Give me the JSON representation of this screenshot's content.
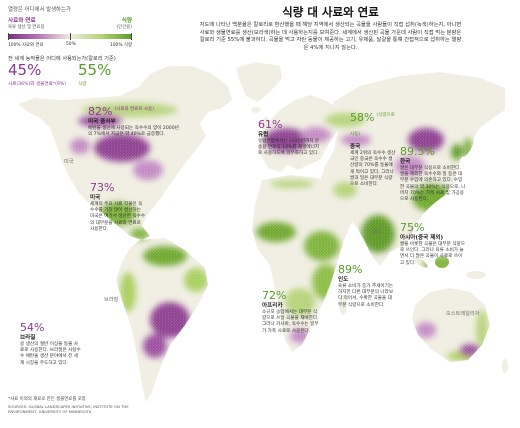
{
  "header": {
    "legend_heading": "열량은 어디에서 발생하는가",
    "title": "식량 대 사료와 연료",
    "intro": "지도에 나타난 백분율은 칼로리로 환산했을 때 해당 지역에서 생산되는 곡물을 사람들이 직접 섭취(녹색)하는지, 아니면 사료와 생물연료를 생산(보라색)하는 데 사용하는지를 보여준다. 세계에서 생산된 곡물 가운데 사람이 직접 먹는 분량은 칼로리 기준 55%에 불과하다. 곡물을 먹고 자란 동물이 제공하는 고기, 유제품, 달걀을 통해 간접적으로 섭취하는 열량은 4%에 지나지 않는다."
  },
  "legend": {
    "feed_label": "사료와 연료",
    "feed_sub": "육류 생산 및 연료용",
    "food_label": "식량",
    "food_sub": "(인간용)",
    "tick_feed": "100% 사료와 연료",
    "tick_mid": "50%",
    "tick_food": "100% 식량",
    "colors": {
      "feed": "#7a2f80",
      "feed_light": "#b877b8",
      "mid": "#efebe0",
      "food_light": "#b6d37a",
      "food": "#5e9a25"
    }
  },
  "global": {
    "question": "전 세계 농작물은 어디에 사용되는가(칼로리 기준)",
    "feed_pct": "45%",
    "feed_label": "사료(36%)와 생물연료*(9%)",
    "food_pct": "55%",
    "food_label": "식량"
  },
  "callouts": [
    {
      "pct": "82%",
      "note": "(사료와 연료로 사용)",
      "region": "미국 중서부",
      "text": "에탄올 생산에 사용되는 옥수수의 양이 2000년의 7%에서 지금은 약 40%로 급증했다."
    },
    {
      "pct": "73%",
      "note": "",
      "region": "미국",
      "text": "세계의 주요 사료 작물인 옥수수를 가장 많이 생산하는 미국은 여기서 생산한 옥수수의 대부분을 사료와 연료로 사용한다."
    },
    {
      "pct": "61%",
      "note": "",
      "region": "유럽",
      "text": "유럽연합에서는 2020년까지 운송용 연료의 10%를 재생에너지로 사용하도록 의무화하고 있다."
    },
    {
      "pct": "58%",
      "note": "(식량으로 사용)",
      "region": "중국",
      "text": "세계 2위의 옥수수 생산국인 중국은 옥수수 생산량의 70%를 동물에게 먹이고 있다. 그러나 쌀과 밀은 대부분 식량으로 소비한다."
    },
    {
      "pct": "89.5%",
      "note": "",
      "region": "한국",
      "text": "쌀은 대부분 식용으로 소비한다. 쌀을 제외한 옥수수와 밀 등은 대부분 수입에 의존하고 있다. 수입한 곡물의 약 30%는 식용으로, 나머지 70%는 가축 사료 및 가공용으로 사용된다."
    },
    {
      "pct": "75%",
      "note": "",
      "region": "아시아(중국 제외)",
      "text": "쌀을 비롯한 곡물은 대부분 식량으로 쓰인다. 그러나 육류 소비가 늘면서 더 많은 곡물이 사료로 쓰이고 있다."
    },
    {
      "pct": "89%",
      "note": "",
      "region": "인도",
      "text": "육류 소비가 증가 추세이기는 하지만 다른 대부분의 나라보다 적어서, 수확한 곡물을 대부분 식량으로 소비한다."
    },
    {
      "pct": "72%",
      "note": "",
      "region": "아프리카",
      "text": "소규모 농업에서는 대부분 식량으로 쓰일 곡물을 재배한다. 그러나 카사바, 옥수수는 일부가 가축 사료로 사용된다."
    },
    {
      "pct": "54%",
      "note": "",
      "region": "브라질",
      "text": "콩 생산의 절반 이상을 동물 사료로 사용한다. 브라질은 사탕수수 에탄올 생산 분야에서 전 세계 시장을 주도하고 있다."
    }
  ],
  "map_labels": {
    "usa": "미국",
    "brazil": "브라질",
    "india": "인도",
    "australia": "오스트레일리아"
  },
  "footer": {
    "note": "*사료 이외의 재료로 만든 생물연료를 포함",
    "source": "SOURCES: GLOBAL LANDSCAPES INITIATIVE, INSTITUTE ON THE ENVIRONMENT, UNIVERSITY OF MINNESOTA"
  }
}
